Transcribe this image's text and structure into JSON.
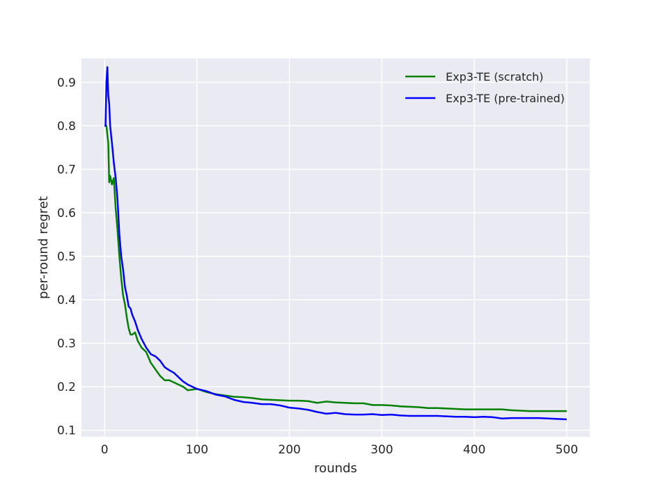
{
  "chart_data": {
    "type": "line",
    "xlabel": "rounds",
    "ylabel": "per-round regret",
    "xlim": [
      -25,
      525
    ],
    "ylim": [
      0.085,
      0.955
    ],
    "xticks": [
      0,
      100,
      200,
      300,
      400,
      500
    ],
    "yticks": [
      0.1,
      0.2,
      0.3,
      0.4,
      0.5,
      0.6,
      0.7,
      0.8,
      0.9
    ],
    "grid": true,
    "legend_position": "top-right",
    "colors": {
      "background": "#eaeaf2",
      "grid": "#ffffff"
    },
    "series": [
      {
        "name": "Exp3-TE (scratch)",
        "color": "#008000",
        "x": [
          0,
          2,
          4,
          5,
          6,
          8,
          10,
          12,
          14,
          16,
          18,
          20,
          22,
          24,
          26,
          28,
          30,
          33,
          36,
          40,
          45,
          50,
          55,
          60,
          65,
          70,
          75,
          80,
          85,
          90,
          100,
          110,
          120,
          130,
          140,
          150,
          160,
          170,
          180,
          190,
          200,
          210,
          220,
          230,
          240,
          250,
          260,
          270,
          280,
          290,
          300,
          310,
          320,
          330,
          340,
          350,
          360,
          370,
          380,
          390,
          400,
          410,
          420,
          430,
          440,
          450,
          460,
          470,
          480,
          490,
          500
        ],
        "y": [
          0.8,
          0.8,
          0.76,
          0.67,
          0.685,
          0.665,
          0.68,
          0.61,
          0.56,
          0.5,
          0.45,
          0.41,
          0.39,
          0.36,
          0.335,
          0.32,
          0.32,
          0.325,
          0.305,
          0.29,
          0.28,
          0.255,
          0.24,
          0.225,
          0.215,
          0.215,
          0.21,
          0.205,
          0.2,
          0.192,
          0.195,
          0.188,
          0.183,
          0.18,
          0.177,
          0.176,
          0.174,
          0.171,
          0.17,
          0.169,
          0.168,
          0.168,
          0.167,
          0.163,
          0.166,
          0.164,
          0.163,
          0.162,
          0.162,
          0.158,
          0.158,
          0.157,
          0.155,
          0.154,
          0.153,
          0.151,
          0.151,
          0.15,
          0.149,
          0.148,
          0.148,
          0.148,
          0.148,
          0.148,
          0.146,
          0.145,
          0.144,
          0.144,
          0.144,
          0.144,
          0.144
        ]
      },
      {
        "name": "Exp3-TE (pre-trained)",
        "color": "#0000ff",
        "x": [
          0,
          1,
          2,
          3,
          4,
          5,
          6,
          8,
          10,
          12,
          14,
          16,
          18,
          20,
          22,
          24,
          26,
          28,
          30,
          33,
          36,
          40,
          45,
          50,
          55,
          60,
          65,
          70,
          75,
          80,
          85,
          90,
          100,
          110,
          120,
          130,
          140,
          150,
          160,
          170,
          180,
          190,
          200,
          210,
          220,
          230,
          240,
          250,
          260,
          270,
          280,
          290,
          300,
          310,
          320,
          330,
          340,
          350,
          360,
          370,
          380,
          390,
          400,
          410,
          420,
          430,
          440,
          450,
          460,
          470,
          480,
          490,
          500
        ],
        "y": [
          0.8,
          0.8,
          0.9,
          0.935,
          0.87,
          0.85,
          0.8,
          0.76,
          0.715,
          0.68,
          0.63,
          0.55,
          0.5,
          0.47,
          0.43,
          0.41,
          0.385,
          0.38,
          0.365,
          0.35,
          0.33,
          0.31,
          0.29,
          0.275,
          0.27,
          0.26,
          0.245,
          0.238,
          0.232,
          0.222,
          0.212,
          0.205,
          0.195,
          0.19,
          0.182,
          0.178,
          0.17,
          0.165,
          0.163,
          0.16,
          0.16,
          0.157,
          0.152,
          0.15,
          0.147,
          0.142,
          0.138,
          0.14,
          0.137,
          0.136,
          0.136,
          0.137,
          0.135,
          0.136,
          0.134,
          0.133,
          0.133,
          0.133,
          0.133,
          0.132,
          0.131,
          0.131,
          0.13,
          0.131,
          0.13,
          0.127,
          0.128,
          0.128,
          0.128,
          0.128,
          0.127,
          0.126,
          0.125
        ]
      }
    ]
  }
}
